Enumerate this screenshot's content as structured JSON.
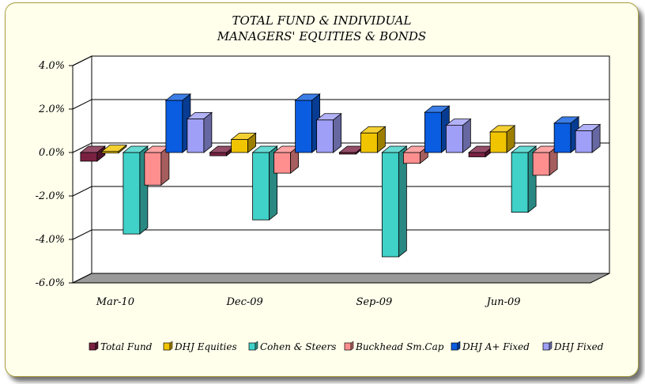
{
  "chart_data": {
    "type": "bar",
    "title_lines": [
      "TOTAL FUND  & INDIVIDUAL",
      "MANAGERS' EQUITIES & BONDS"
    ],
    "categories": [
      "Mar-10",
      "Dec-09",
      "Sep-09",
      "Jun-09"
    ],
    "series": [
      {
        "name": "Total Fund",
        "color": "#7a2142",
        "values": [
          -0.4,
          -0.15,
          -0.05,
          -0.2
        ]
      },
      {
        "name": "DHJ Equities",
        "color": "#f1c400",
        "values": [
          0.05,
          0.6,
          0.9,
          0.95
        ]
      },
      {
        "name": "Cohen & Steers",
        "color": "#40d1c8",
        "values": [
          -3.75,
          -3.1,
          -4.8,
          -2.75
        ]
      },
      {
        "name": "Buckhead Sm.Cap",
        "color": "#ff8f8f",
        "values": [
          -1.5,
          -0.95,
          -0.5,
          -1.05
        ]
      },
      {
        "name": "DHJ A+ Fixed",
        "color": "#0a5ce0",
        "values": [
          2.4,
          2.4,
          1.85,
          1.35
        ]
      },
      {
        "name": "DHJ Fixed",
        "color": "#9f9ff7",
        "values": [
          1.55,
          1.5,
          1.25,
          1.0
        ]
      }
    ],
    "ylim": [
      -6.0,
      4.0
    ],
    "yticks": [
      4.0,
      2.0,
      0.0,
      -2.0,
      -4.0,
      -6.0
    ],
    "ytick_labels": [
      "4.0%",
      "2.0%",
      "0.0%",
      "-2.0%",
      "-4.0%",
      "-6.0%"
    ],
    "grid": true,
    "legend_position": "bottom"
  }
}
